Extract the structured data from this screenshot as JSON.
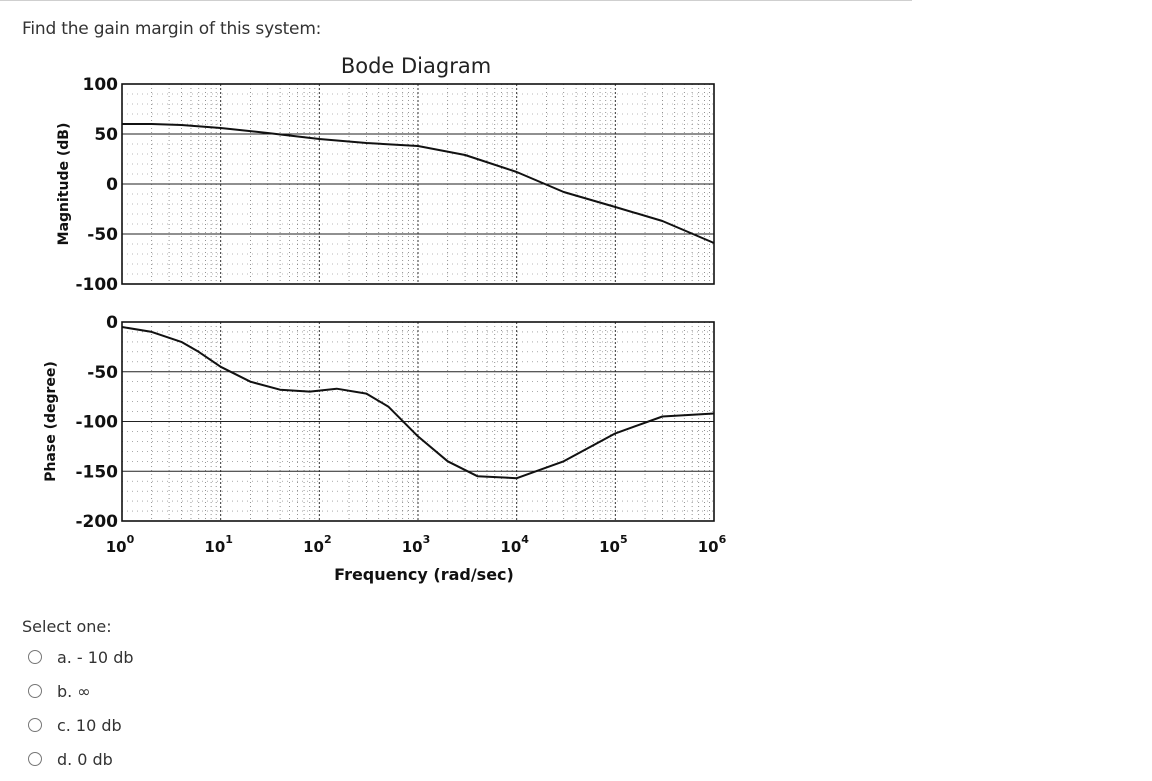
{
  "question": "Find the gain margin of this system:",
  "select_label": "Select one:",
  "options": [
    {
      "letter": "a.",
      "text": "- 10 db"
    },
    {
      "letter": "b.",
      "text": "∞"
    },
    {
      "letter": "c.",
      "text": "10 db"
    },
    {
      "letter": "d.",
      "text": "0 db"
    }
  ],
  "chart_data": {
    "type": "line",
    "title": "Bode Diagram",
    "xlabel": "Frequency (rad/sec)",
    "xscale": "log",
    "xlim": [
      1,
      1000000
    ],
    "x_tick_exponents": [
      "0",
      "1",
      "2",
      "3",
      "4",
      "5",
      "6"
    ],
    "grid": true,
    "panels": [
      {
        "name": "magnitude",
        "ylabel": "Magnitude (dB)",
        "ylim": [
          -100,
          100
        ],
        "yticks": [
          "100",
          "50",
          "0",
          "-50",
          "-100"
        ],
        "series": [
          {
            "x": [
              1,
              2,
              4,
              10,
              30,
              100,
              300,
              1000,
              3000,
              10000,
              30000,
              100000,
              300000,
              1000000
            ],
            "values": [
              60,
              60,
              59,
              56,
              51,
              45,
              41,
              38,
              29,
              12,
              -8,
              -23,
              -37,
              -59
            ]
          }
        ]
      },
      {
        "name": "phase",
        "ylabel": "Phase (degree)",
        "ylim": [
          -200,
          0
        ],
        "yticks": [
          "0",
          "-50",
          "-100",
          "-150",
          "-200"
        ],
        "series": [
          {
            "x": [
              1,
              2,
              4,
              6,
              10,
              20,
              40,
              80,
              150,
              300,
              500,
              1000,
              2000,
              4000,
              10000,
              30000,
              100000,
              300000,
              1000000
            ],
            "values": [
              -5,
              -10,
              -20,
              -30,
              -45,
              -60,
              -68,
              -70,
              -67,
              -72,
              -85,
              -115,
              -140,
              -155,
              -157,
              -140,
              -112,
              -95,
              -92
            ]
          }
        ]
      }
    ]
  }
}
